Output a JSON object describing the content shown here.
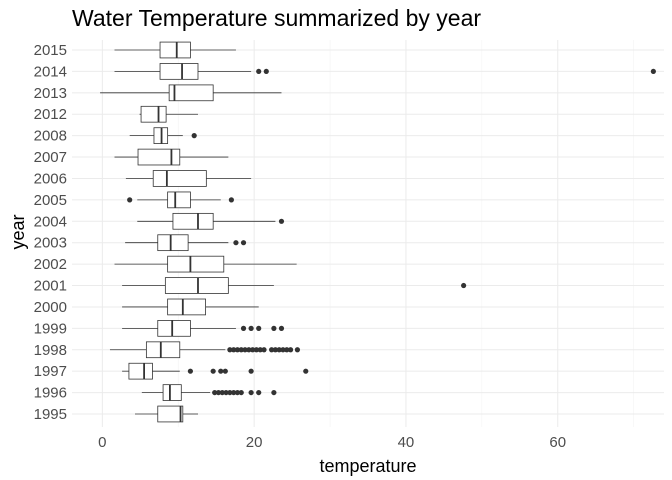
{
  "chart_data": {
    "type": "boxplot",
    "orientation": "horizontal",
    "title": "Water Temperature summarized by year",
    "xlabel": "temperature",
    "ylabel": "year",
    "xlim": [
      -4,
      74
    ],
    "xticks": [
      0,
      20,
      40,
      60
    ],
    "xtick_labels": [
      "0",
      "20",
      "40",
      "60"
    ],
    "grid": true,
    "legend": "none",
    "colors": {
      "box_fill": "#ffffff",
      "box_stroke": "#333333",
      "outlier": "#333333",
      "grid": "#ebebeb",
      "tick_text": "#4d4d4d"
    },
    "categories": [
      "1995",
      "1996",
      "1997",
      "1998",
      "1999",
      "2000",
      "2001",
      "2002",
      "2003",
      "2004",
      "2005",
      "2006",
      "2007",
      "2008",
      "2012",
      "2013",
      "2014",
      "2015"
    ],
    "boxes": [
      {
        "year": "1995",
        "whisker_low": 4.3,
        "q1": 7.3,
        "median": 10.3,
        "q3": 10.6,
        "whisker_high": 12.6,
        "outliers": []
      },
      {
        "year": "1996",
        "whisker_low": 5.2,
        "q1": 8.0,
        "median": 8.9,
        "q3": 10.4,
        "whisker_high": 14.2,
        "outliers": [
          14.8,
          15.3,
          15.8,
          16.3,
          16.8,
          17.3,
          17.8,
          18.3,
          19.6,
          20.6,
          22.6
        ]
      },
      {
        "year": "1997",
        "whisker_low": 2.6,
        "q1": 3.5,
        "median": 5.5,
        "q3": 6.6,
        "whisker_high": 10.2,
        "outliers": [
          11.6,
          14.6,
          15.6,
          16.2,
          19.6,
          26.8
        ]
      },
      {
        "year": "1998",
        "whisker_low": 1.0,
        "q1": 5.8,
        "median": 7.7,
        "q3": 10.2,
        "whisker_high": 16.2,
        "outliers": [
          16.8,
          17.3,
          17.8,
          18.3,
          18.8,
          19.3,
          19.8,
          20.3,
          20.8,
          21.3,
          22.3,
          22.8,
          23.3,
          23.8,
          24.3,
          24.8,
          25.7
        ]
      },
      {
        "year": "1999",
        "whisker_low": 2.6,
        "q1": 7.3,
        "median": 9.2,
        "q3": 11.6,
        "whisker_high": 17.6,
        "outliers": [
          18.6,
          19.6,
          20.6,
          22.6,
          23.6
        ]
      },
      {
        "year": "2000",
        "whisker_low": 2.6,
        "q1": 8.6,
        "median": 10.6,
        "q3": 13.6,
        "whisker_high": 20.6,
        "outliers": []
      },
      {
        "year": "2001",
        "whisker_low": 2.6,
        "q1": 8.3,
        "median": 12.6,
        "q3": 16.6,
        "whisker_high": 22.6,
        "outliers": [
          47.6
        ]
      },
      {
        "year": "2002",
        "whisker_low": 1.6,
        "q1": 8.6,
        "median": 11.6,
        "q3": 16.0,
        "whisker_high": 25.6,
        "outliers": []
      },
      {
        "year": "2003",
        "whisker_low": 3.0,
        "q1": 7.3,
        "median": 9.0,
        "q3": 11.3,
        "whisker_high": 16.6,
        "outliers": [
          17.6,
          18.6
        ]
      },
      {
        "year": "2004",
        "whisker_low": 4.6,
        "q1": 9.3,
        "median": 12.6,
        "q3": 14.6,
        "whisker_high": 22.8,
        "outliers": [
          23.6
        ]
      },
      {
        "year": "2005",
        "whisker_low": 4.6,
        "q1": 8.6,
        "median": 9.6,
        "q3": 11.6,
        "whisker_high": 15.6,
        "outliers": [
          3.6,
          17.0
        ]
      },
      {
        "year": "2006",
        "whisker_low": 3.1,
        "q1": 6.7,
        "median": 8.5,
        "q3": 13.7,
        "whisker_high": 19.6,
        "outliers": []
      },
      {
        "year": "2007",
        "whisker_low": 1.6,
        "q1": 4.7,
        "median": 9.1,
        "q3": 10.2,
        "whisker_high": 16.6,
        "outliers": []
      },
      {
        "year": "2008",
        "whisker_low": 3.6,
        "q1": 6.8,
        "median": 7.8,
        "q3": 8.6,
        "whisker_high": 10.6,
        "outliers": [
          12.1
        ]
      },
      {
        "year": "2012",
        "whisker_low": 4.9,
        "q1": 5.1,
        "median": 7.4,
        "q3": 8.4,
        "whisker_high": 12.6,
        "outliers": []
      },
      {
        "year": "2013",
        "whisker_low": -0.3,
        "q1": 8.8,
        "median": 9.5,
        "q3": 14.6,
        "whisker_high": 23.6,
        "outliers": []
      },
      {
        "year": "2014",
        "whisker_low": 1.6,
        "q1": 7.6,
        "median": 10.5,
        "q3": 12.6,
        "whisker_high": 19.6,
        "outliers": [
          20.6,
          21.6,
          72.6
        ]
      },
      {
        "year": "2015",
        "whisker_low": 1.6,
        "q1": 7.6,
        "median": 9.8,
        "q3": 11.6,
        "whisker_high": 17.6,
        "outliers": []
      }
    ]
  }
}
